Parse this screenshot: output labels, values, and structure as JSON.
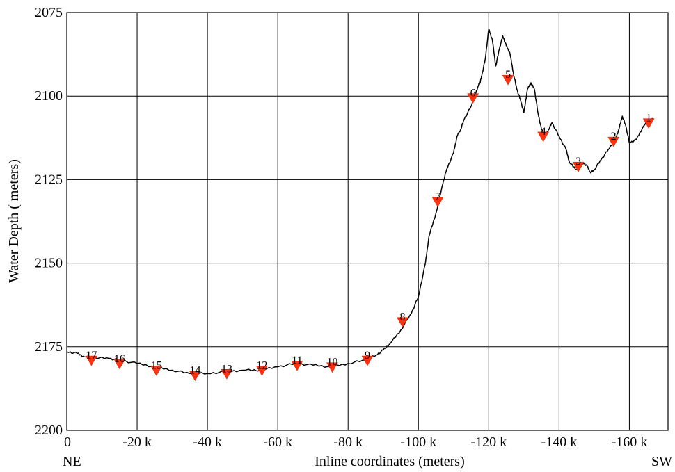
{
  "chart_data": {
    "type": "line",
    "xlabel": "Inline coordinates (meters)",
    "ylabel": "Water Depth ( meters)",
    "x_ticks": [
      0,
      -20000,
      -40000,
      -60000,
      -80000,
      -100000,
      -120000,
      -140000,
      -160000
    ],
    "x_tick_labels": [
      "0",
      "-20 k",
      "-40 k",
      "-60 k",
      "-80 k",
      "-100 k",
      "-120 k",
      "-140 k",
      "-160 k"
    ],
    "y_ticks": [
      2075,
      2100,
      2125,
      2150,
      2175,
      2200
    ],
    "y_tick_labels": [
      "2075",
      "2100",
      "2125",
      "2150",
      "2175",
      "2200"
    ],
    "xlim": [
      0,
      -171000
    ],
    "ylim": [
      2075,
      2200
    ],
    "y_inverted": true,
    "grid": true,
    "left_end_label": "NE",
    "right_end_label": "SW",
    "series": [
      {
        "color": "#000000",
        "x": [
          0,
          -3000,
          -5000,
          -8000,
          -12000,
          -15000,
          -20000,
          -25000,
          -30000,
          -35000,
          -40000,
          -45000,
          -50000,
          -55000,
          -60000,
          -65000,
          -70000,
          -75000,
          -80000,
          -85000,
          -88000,
          -90000,
          -92000,
          -95000,
          -98000,
          -100000,
          -102000,
          -103000,
          -105000,
          -107000,
          -108000,
          -110000,
          -111000,
          -112000,
          -113000,
          -115000,
          -116000,
          -117000,
          -117500,
          -118000,
          -119000,
          -120000,
          -121000,
          -122000,
          -123000,
          -124000,
          -125000,
          -126000,
          -127000,
          -128000,
          -129000,
          -130000,
          -131000,
          -132000,
          -133000,
          -134000,
          -135000,
          -136000,
          -137000,
          -138000,
          -140000,
          -142000,
          -143000,
          -145000,
          -146000,
          -147000,
          -148000,
          -149000,
          -150000,
          -152000,
          -154000,
          -156000,
          -157000,
          -158000,
          -159000,
          -160000,
          -162000,
          -164000,
          -166000,
          -167000
        ],
        "y": [
          2176.5,
          2177.0,
          2178.0,
          2178.2,
          2178.5,
          2179.0,
          2180.0,
          2181.0,
          2182.0,
          2183.0,
          2183.0,
          2182.5,
          2182.0,
          2182.0,
          2181.0,
          2180.0,
          2180.5,
          2181.0,
          2180.0,
          2179.0,
          2177.5,
          2176.0,
          2174.0,
          2170.0,
          2165.0,
          2160.0,
          2150.0,
          2142.0,
          2135.0,
          2126.0,
          2122.0,
          2117.0,
          2112.0,
          2110.0,
          2107.0,
          2103.0,
          2100.0,
          2097.0,
          2096.0,
          2094.0,
          2089.0,
          2080.0,
          2083.0,
          2091.0,
          2086.0,
          2082.0,
          2085.0,
          2087.0,
          2093.0,
          2098.0,
          2101.0,
          2105.0,
          2098.0,
          2096.0,
          2098.0,
          2105.0,
          2110.0,
          2112.0,
          2110.0,
          2108.0,
          2112.0,
          2116.0,
          2120.0,
          2122.0,
          2121.0,
          2120.0,
          2121.0,
          2123.0,
          2122.0,
          2119.0,
          2116.0,
          2113.0,
          2110.0,
          2106.0,
          2109.0,
          2114.0,
          2113.0,
          2109.0,
          2107.0,
          2107.0
        ]
      }
    ],
    "markers": {
      "color": "#ff3311",
      "points": [
        {
          "label": "1",
          "x": -165500,
          "y": 2108.0
        },
        {
          "label": "2",
          "x": -155500,
          "y": 2113.5
        },
        {
          "label": "3",
          "x": -145500,
          "y": 2121.0
        },
        {
          "label": "4",
          "x": -135500,
          "y": 2112.0
        },
        {
          "label": "5",
          "x": -125500,
          "y": 2095.0
        },
        {
          "label": "6",
          "x": -115500,
          "y": 2100.5
        },
        {
          "label": "7",
          "x": -105500,
          "y": 2131.5
        },
        {
          "label": "8",
          "x": -95500,
          "y": 2167.5
        },
        {
          "label": "9",
          "x": -85500,
          "y": 2179.0
        },
        {
          "label": "10",
          "x": -75500,
          "y": 2181.0
        },
        {
          "label": "11",
          "x": -65500,
          "y": 2180.5
        },
        {
          "label": "12",
          "x": -55500,
          "y": 2182.0
        },
        {
          "label": "13",
          "x": -45500,
          "y": 2183.0
        },
        {
          "label": "14",
          "x": -36500,
          "y": 2183.5
        },
        {
          "label": "15",
          "x": -25500,
          "y": 2182.0
        },
        {
          "label": "16",
          "x": -15000,
          "y": 2180.0
        },
        {
          "label": "17",
          "x": -7000,
          "y": 2179.0
        }
      ]
    }
  }
}
